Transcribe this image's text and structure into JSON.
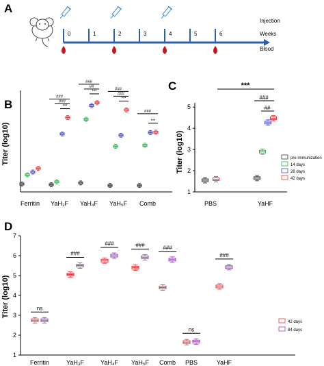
{
  "panels": {
    "A": "A",
    "B": "B",
    "C": "C",
    "D": "D"
  },
  "timeline": {
    "week_ticks": [
      "0",
      "1",
      "2",
      "3",
      "4",
      "5",
      "6"
    ],
    "injection_weeks": [
      0,
      2,
      4
    ],
    "blood_weeks": [
      0,
      2,
      4,
      6
    ],
    "legend_injection": "Injection",
    "legend_weeks": "Weeks",
    "legend_blood": "Blood",
    "colors": {
      "axis": "#2e5fa0",
      "blood": "#c4161c",
      "syringe": "#3b8ed0"
    }
  },
  "chart_data": [
    {
      "panel": "B",
      "type": "box",
      "ylabel": "Titer (log10)",
      "ylim": [
        1.7,
        6.2
      ],
      "categories": [
        "Ferritin",
        "YaH₃F",
        "YaH₄F",
        "YaH₅F",
        "Comb"
      ],
      "series": [
        {
          "name": "pre immunization",
          "color": "#333333",
          "values": [
            2.0,
            1.97,
            2.05,
            1.93,
            1.93
          ]
        },
        {
          "name": "14 days",
          "color": "#33b24a",
          "values": [
            2.42,
            2.1,
            4.97,
            3.73,
            3.78
          ]
        },
        {
          "name": "28 days",
          "color": "#4b4bbf",
          "values": [
            2.55,
            4.3,
            5.6,
            4.24,
            4.36
          ]
        },
        {
          "name": "42 days",
          "color": "#e0393e",
          "values": [
            2.72,
            5.05,
            5.73,
            5.4,
            4.38
          ]
        }
      ],
      "annotations": [
        {
          "group": 1,
          "from": 0,
          "to": 3,
          "text": "###"
        },
        {
          "group": 1,
          "from": 1,
          "to": 3,
          "text": "###"
        },
        {
          "group": 1,
          "from": 2,
          "to": 3,
          "text": "***"
        },
        {
          "group": 2,
          "from": 0,
          "to": 3,
          "text": "###"
        },
        {
          "group": 2,
          "from": 1,
          "to": 3,
          "text": "##"
        },
        {
          "group": 2,
          "from": 2,
          "to": 3,
          "text": "***"
        },
        {
          "group": 3,
          "from": 0,
          "to": 3,
          "text": "###"
        },
        {
          "group": 3,
          "from": 1,
          "to": 3,
          "text": "###"
        },
        {
          "group": 3,
          "from": 2,
          "to": 3,
          "text": "***"
        },
        {
          "group": 4,
          "from": 0,
          "to": 3,
          "text": "###"
        },
        {
          "group": 4,
          "from": 2,
          "to": 3,
          "text": "***"
        }
      ]
    },
    {
      "panel": "C",
      "type": "box",
      "ylabel": "Titer (log10)",
      "ylim": [
        1.0,
        5.2
      ],
      "yticks": [
        1,
        2,
        3,
        4,
        5
      ],
      "categories": [
        "PBS",
        "YaHF"
      ],
      "series": [
        {
          "name": "pre immunization",
          "color": "#333333",
          "values": [
            1.55,
            1.65
          ]
        },
        {
          "name": "14 days",
          "color": "#33b24a",
          "values": [
            1.6,
            2.9
          ]
        },
        {
          "name": "28 days",
          "color": "#4b4bbf",
          "values": [
            1.58,
            4.27
          ]
        },
        {
          "name": "42 days",
          "color": "#e0393e",
          "values": [
            1.6,
            4.47
          ]
        }
      ],
      "annotations": [
        {
          "text": "***",
          "x1": "PBS",
          "x2": "YaHF"
        },
        {
          "text": "###",
          "group": 1,
          "from": 1,
          "to": 3
        },
        {
          "text": "##",
          "group": 1,
          "from": 2,
          "to": 3
        }
      ],
      "legend": [
        "pre immunization",
        "14 days",
        "28 days",
        "42 days"
      ]
    },
    {
      "panel": "D",
      "type": "box",
      "ylabel": "Titer (log10)",
      "ylim": [
        1.0,
        7.0
      ],
      "yticks": [
        1,
        2,
        3,
        4,
        5,
        6,
        7
      ],
      "categories": [
        "Ferritin",
        "YaH₃F",
        "YaH₄F",
        "YaH₅F",
        "Comb",
        "PBS",
        "YaHF"
      ],
      "series": [
        {
          "name": "42 days",
          "color": "#e0393e",
          "values": [
            2.75,
            5.05,
            5.75,
            5.4,
            4.4,
            1.65,
            4.45
          ]
        },
        {
          "name": "84 days",
          "color": "#8e44ad",
          "values": [
            2.75,
            5.5,
            6.0,
            5.92,
            5.8,
            1.68,
            5.42
          ]
        }
      ],
      "annotations": [
        "ns",
        "###",
        "###",
        "###",
        "###",
        "ns",
        "###"
      ],
      "legend": [
        "42 days",
        "84 days"
      ]
    }
  ]
}
